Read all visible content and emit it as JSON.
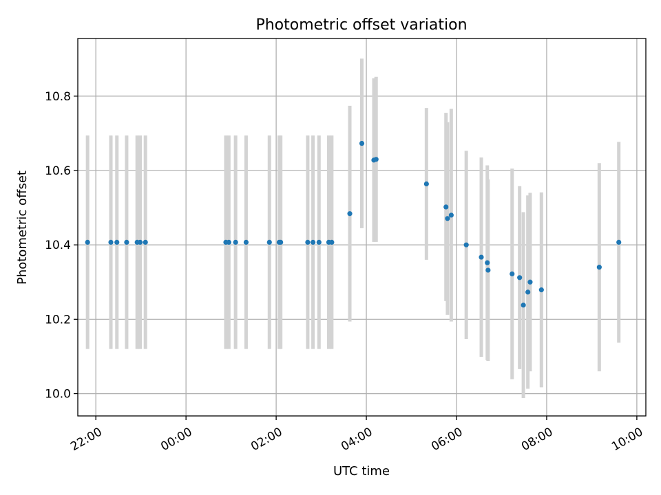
{
  "chart_data": {
    "type": "scatter",
    "title": "Photometric offset variation",
    "xlabel": "UTC time",
    "ylabel": "Photometric offset",
    "x_axis": {
      "kind": "time",
      "range": [
        "21:36",
        "10:12"
      ],
      "ticks": [
        {
          "value": "22:00",
          "label": "22:00"
        },
        {
          "value": "00:00",
          "label": "00:00"
        },
        {
          "value": "02:00",
          "label": "02:00"
        },
        {
          "value": "04:00",
          "label": "04:00"
        },
        {
          "value": "06:00",
          "label": "06:00"
        },
        {
          "value": "08:00",
          "label": "08:00"
        },
        {
          "value": "10:00",
          "label": "10:00"
        }
      ]
    },
    "y_axis": {
      "range": [
        9.94,
        10.955
      ],
      "ticks": [
        {
          "value": 10.0,
          "label": "10.0"
        },
        {
          "value": 10.2,
          "label": "10.2"
        },
        {
          "value": 10.4,
          "label": "10.4"
        },
        {
          "value": 10.6,
          "label": "10.6"
        },
        {
          "value": 10.8,
          "label": "10.8"
        }
      ]
    },
    "grid": true,
    "legend": "none",
    "colors": {
      "point": "#1f77b4",
      "errorbar": "#d3d3d3",
      "grid": "#b0b0b0"
    },
    "points": [
      {
        "x": "21:49",
        "y": 10.407,
        "yerr": 0.287
      },
      {
        "x": "22:20",
        "y": 10.407,
        "yerr": 0.287
      },
      {
        "x": "22:28",
        "y": 10.407,
        "yerr": 0.287
      },
      {
        "x": "22:41",
        "y": 10.407,
        "yerr": 0.287
      },
      {
        "x": "22:55",
        "y": 10.407,
        "yerr": 0.287
      },
      {
        "x": "22:59",
        "y": 10.407,
        "yerr": 0.287
      },
      {
        "x": "23:06",
        "y": 10.407,
        "yerr": 0.287
      },
      {
        "x": "00:53",
        "y": 10.407,
        "yerr": 0.287
      },
      {
        "x": "00:57",
        "y": 10.407,
        "yerr": 0.287
      },
      {
        "x": "01:06",
        "y": 10.407,
        "yerr": 0.287
      },
      {
        "x": "01:20",
        "y": 10.407,
        "yerr": 0.287
      },
      {
        "x": "01:51",
        "y": 10.407,
        "yerr": 0.287
      },
      {
        "x": "02:04",
        "y": 10.407,
        "yerr": 0.287
      },
      {
        "x": "02:06",
        "y": 10.407,
        "yerr": 0.287
      },
      {
        "x": "02:42",
        "y": 10.407,
        "yerr": 0.287
      },
      {
        "x": "02:49",
        "y": 10.407,
        "yerr": 0.287
      },
      {
        "x": "02:57",
        "y": 10.407,
        "yerr": 0.287
      },
      {
        "x": "03:10",
        "y": 10.407,
        "yerr": 0.287
      },
      {
        "x": "03:14",
        "y": 10.407,
        "yerr": 0.287
      },
      {
        "x": "03:38",
        "y": 10.484,
        "yerr": 0.29
      },
      {
        "x": "03:54",
        "y": 10.673,
        "yerr": 0.228
      },
      {
        "x": "04:10",
        "y": 10.628,
        "yerr": 0.22
      },
      {
        "x": "04:13",
        "y": 10.63,
        "yerr": 0.222
      },
      {
        "x": "05:20",
        "y": 10.564,
        "yerr": 0.204
      },
      {
        "x": "05:46",
        "y": 10.502,
        "yerr": 0.253
      },
      {
        "x": "05:48",
        "y": 10.471,
        "yerr": 0.259
      },
      {
        "x": "05:53",
        "y": 10.48,
        "yerr": 0.286
      },
      {
        "x": "06:13",
        "y": 10.4,
        "yerr": 0.253
      },
      {
        "x": "06:33",
        "y": 10.367,
        "yerr": 0.268
      },
      {
        "x": "06:41",
        "y": 10.352,
        "yerr": 0.262
      },
      {
        "x": "06:42",
        "y": 10.332,
        "yerr": 0.244
      },
      {
        "x": "07:14",
        "y": 10.322,
        "yerr": 0.283
      },
      {
        "x": "07:24",
        "y": 10.312,
        "yerr": 0.246
      },
      {
        "x": "07:29",
        "y": 10.238,
        "yerr": 0.25
      },
      {
        "x": "07:35",
        "y": 10.273,
        "yerr": 0.26
      },
      {
        "x": "07:38",
        "y": 10.3,
        "yerr": 0.24
      },
      {
        "x": "07:53",
        "y": 10.279,
        "yerr": 0.262
      },
      {
        "x": "09:10",
        "y": 10.34,
        "yerr": 0.28
      },
      {
        "x": "09:36",
        "y": 10.407,
        "yerr": 0.27
      }
    ]
  }
}
